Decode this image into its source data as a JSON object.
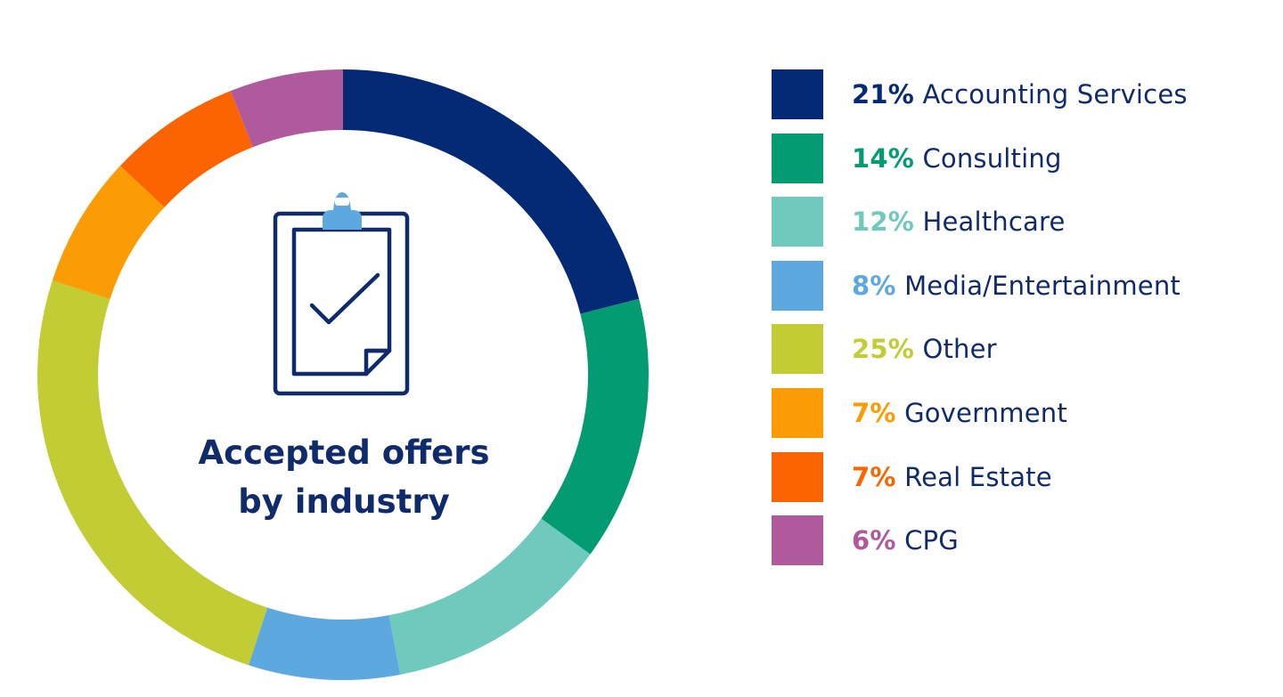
{
  "chart_data": {
    "type": "pie",
    "title_lines": [
      "Accepted offers",
      "by industry"
    ],
    "slices": [
      {
        "label": "Accounting Services",
        "percent_text": "21%",
        "value": 21,
        "color": "#042a76"
      },
      {
        "label": "Consulting",
        "percent_text": "14%",
        "value": 14,
        "color": "#029b72"
      },
      {
        "label": "Healthcare",
        "percent_text": "12%",
        "value": 12,
        "color": "#6fcabd"
      },
      {
        "label": "Media/Entertainment",
        "percent_text": "8%",
        "value": 8,
        "color": "#5ea8e0"
      },
      {
        "label": "Other",
        "percent_text": "25%",
        "value": 25,
        "color": "#c2cd34"
      },
      {
        "label": "Government",
        "percent_text": "7%",
        "value": 7,
        "color": "#fb9c05"
      },
      {
        "label": "Real Estate",
        "percent_text": "7%",
        "value": 7,
        "color": "#fc6402"
      },
      {
        "label": "CPG",
        "percent_text": "6%",
        "value": 6,
        "color": "#ae5a9d"
      }
    ],
    "legend_placement": "right",
    "icon": "clipboard-check-icon",
    "text_color": "#0f2b6b"
  }
}
